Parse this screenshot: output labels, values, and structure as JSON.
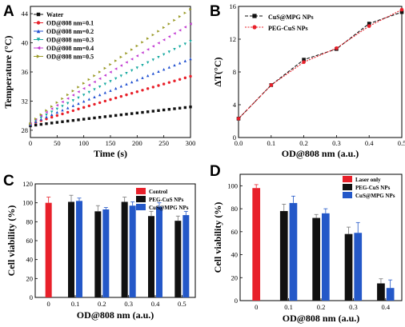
{
  "panels": {
    "a": "A",
    "b": "B",
    "c": "C",
    "d": "D"
  },
  "chart_data": [
    {
      "id": "A",
      "type": "scatter",
      "xlabel": "Time (s)",
      "ylabel": "Temperature (°C)",
      "xlim": [
        0,
        300
      ],
      "ylim": [
        27,
        45
      ],
      "xticks": [
        "0",
        "50",
        "100",
        "150",
        "200",
        "250",
        "300"
      ],
      "yticks": [
        "28",
        "32",
        "36",
        "40",
        "44"
      ],
      "legend_position": "top-left",
      "series": [
        {
          "name": "Water",
          "color": "#111111",
          "marker": "square",
          "start": 28.6,
          "end": 31.2
        },
        {
          "name": "OD@808 nm=0.1",
          "color": "#e8202a",
          "marker": "circle",
          "start": 28.8,
          "end": 35.4
        },
        {
          "name": "OD@808 nm=0.2",
          "color": "#1f4fd0",
          "marker": "triangle-up",
          "start": 28.8,
          "end": 37.8
        },
        {
          "name": "OD@808 nm=0.3",
          "color": "#16a9a0",
          "marker": "triangle-down",
          "start": 28.8,
          "end": 40.2
        },
        {
          "name": "OD@808 nm=0.4",
          "color": "#c23bd2",
          "marker": "triangle-left",
          "start": 28.9,
          "end": 42.6
        },
        {
          "name": "OD@808 nm=0.5",
          "color": "#9a9a28",
          "marker": "triangle-right",
          "start": 28.9,
          "end": 44.6
        }
      ]
    },
    {
      "id": "B",
      "type": "line",
      "xlabel": "OD@808 nm (a.u.)",
      "ylabel": "ΔT(°C)",
      "xlim": [
        0,
        0.5
      ],
      "ylim": [
        0,
        16
      ],
      "xticks": [
        "0.0",
        "0.1",
        "0.2",
        "0.3",
        "0.4",
        "0.5"
      ],
      "yticks": [
        "0",
        "4",
        "8",
        "12",
        "16"
      ],
      "legend_position": "top-left",
      "x": [
        0,
        0.1,
        0.2,
        0.3,
        0.4,
        0.5
      ],
      "series": [
        {
          "name": "CuS@MPG NPs",
          "color": "#111111",
          "marker": "square",
          "values": [
            2.3,
            6.4,
            9.5,
            10.8,
            13.9,
            15.3
          ]
        },
        {
          "name": "PEG-CuS NPs",
          "color": "#e8202a",
          "marker": "circle",
          "values": [
            2.3,
            6.4,
            9.2,
            10.9,
            13.6,
            15.6
          ]
        }
      ]
    },
    {
      "id": "C",
      "type": "bar",
      "xlabel": "OD@808 nm (a.u.)",
      "ylabel": "Cell viability (%)",
      "ylim": [
        0,
        120
      ],
      "categories": [
        "0",
        "0.1",
        "0.2",
        "0.3",
        "0.4",
        "0.5"
      ],
      "yticks": [
        "0",
        "20",
        "40",
        "60",
        "80",
        "100",
        "120"
      ],
      "legend_position": "top-right",
      "series": [
        {
          "name": "Control",
          "color": "#e8202a",
          "values": [
            100,
            null,
            null,
            null,
            null,
            null
          ],
          "errors": [
            6,
            null,
            null,
            null,
            null,
            null
          ]
        },
        {
          "name": "PEG-CuS NPs",
          "color": "#111111",
          "values": [
            null,
            101,
            91,
            101,
            86,
            81
          ],
          "errors": [
            null,
            7,
            6,
            5,
            5,
            5
          ]
        },
        {
          "name": "CuS@MPG NPs",
          "color": "#2458c8",
          "values": [
            null,
            102,
            93,
            97,
            96,
            87
          ],
          "errors": [
            null,
            3,
            2,
            4,
            4,
            4
          ]
        }
      ]
    },
    {
      "id": "D",
      "type": "bar",
      "xlabel": "OD@808 nm (a.u.)",
      "ylabel": "Cell viability (%)",
      "ylim": [
        0,
        110
      ],
      "categories": [
        "0",
        "0.1",
        "0.2",
        "0.3",
        "0.4"
      ],
      "yticks": [
        "0",
        "20",
        "40",
        "60",
        "80",
        "100"
      ],
      "legend_position": "top-right",
      "series": [
        {
          "name": "Laser only",
          "color": "#e8202a",
          "values": [
            98,
            null,
            null,
            null,
            null
          ],
          "errors": [
            3,
            null,
            null,
            null,
            null
          ]
        },
        {
          "name": "PEG-CuS NPs",
          "color": "#111111",
          "values": [
            null,
            78,
            72,
            58,
            15
          ],
          "errors": [
            null,
            6,
            3,
            6,
            4
          ]
        },
        {
          "name": "CuS@MPG NPs",
          "color": "#2458c8",
          "values": [
            null,
            85,
            76,
            59,
            11
          ],
          "errors": [
            null,
            6,
            4,
            9,
            7
          ]
        }
      ]
    }
  ]
}
